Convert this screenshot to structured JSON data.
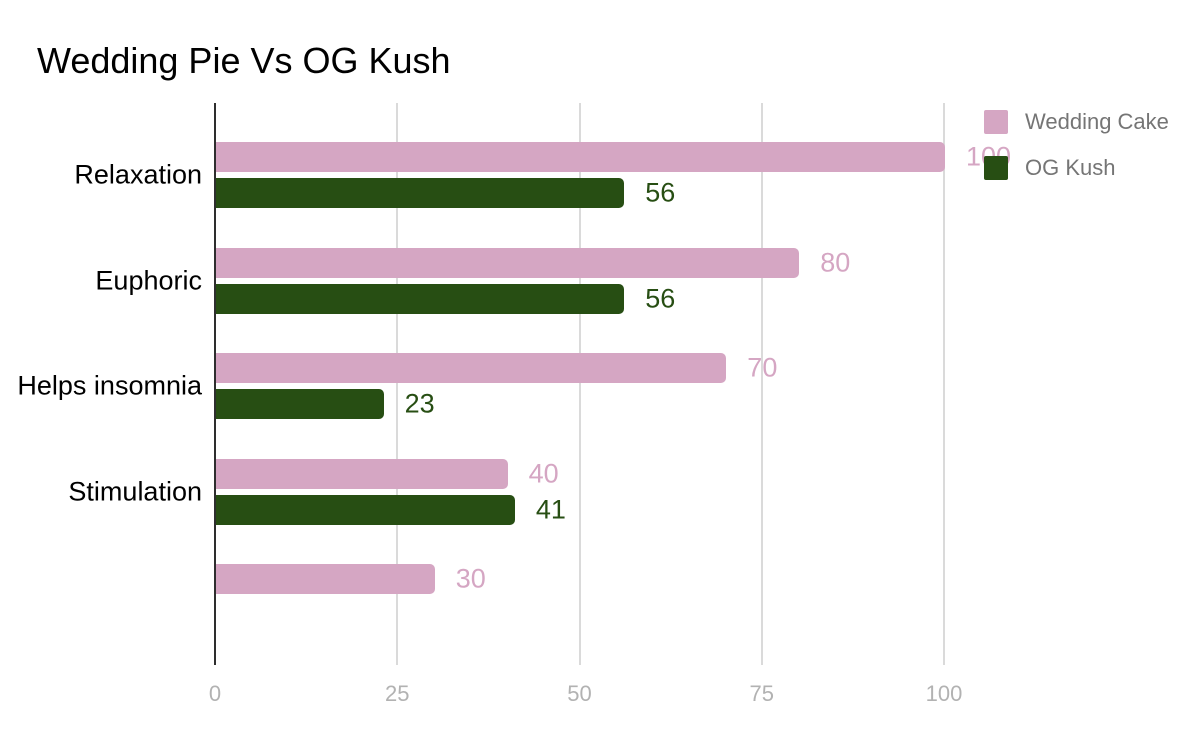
{
  "title": "Wedding Pie Vs OG Kush",
  "legend": {
    "position": "right",
    "items": [
      {
        "label": "Wedding Cake",
        "color": "#d5a6c3"
      },
      {
        "label": "OG Kush",
        "color": "#274e13"
      }
    ]
  },
  "axis": {
    "tick_labels": [
      "0",
      "25",
      "50",
      "75",
      "100"
    ]
  },
  "colors": {
    "wedding_cake_pink": "#d5a6c3",
    "og_kush_green": "#274e13",
    "gridline": "#dadada",
    "axis_line": "#2e2e2e",
    "tick_text": "#b2b2b2",
    "legend_text": "#757575",
    "title_text": "#000000"
  },
  "chart_data": {
    "type": "bar",
    "orientation": "horizontal",
    "title": "Wedding Pie Vs OG Kush",
    "xlabel": "",
    "ylabel": "",
    "xlim": [
      0,
      100
    ],
    "x_ticks": [
      0,
      25,
      50,
      75,
      100
    ],
    "grid": true,
    "legend_position": "top-right",
    "value_labels": true,
    "categories": [
      "Relaxation",
      "Euphoric",
      "Helps insomnia",
      "Stimulation",
      ""
    ],
    "series": [
      {
        "name": "Wedding Cake",
        "color": "#d5a6c3",
        "values": [
          100,
          80,
          70,
          40,
          30
        ]
      },
      {
        "name": "OG Kush",
        "color": "#274e13",
        "values": [
          56,
          56,
          23,
          41,
          null
        ]
      }
    ]
  }
}
